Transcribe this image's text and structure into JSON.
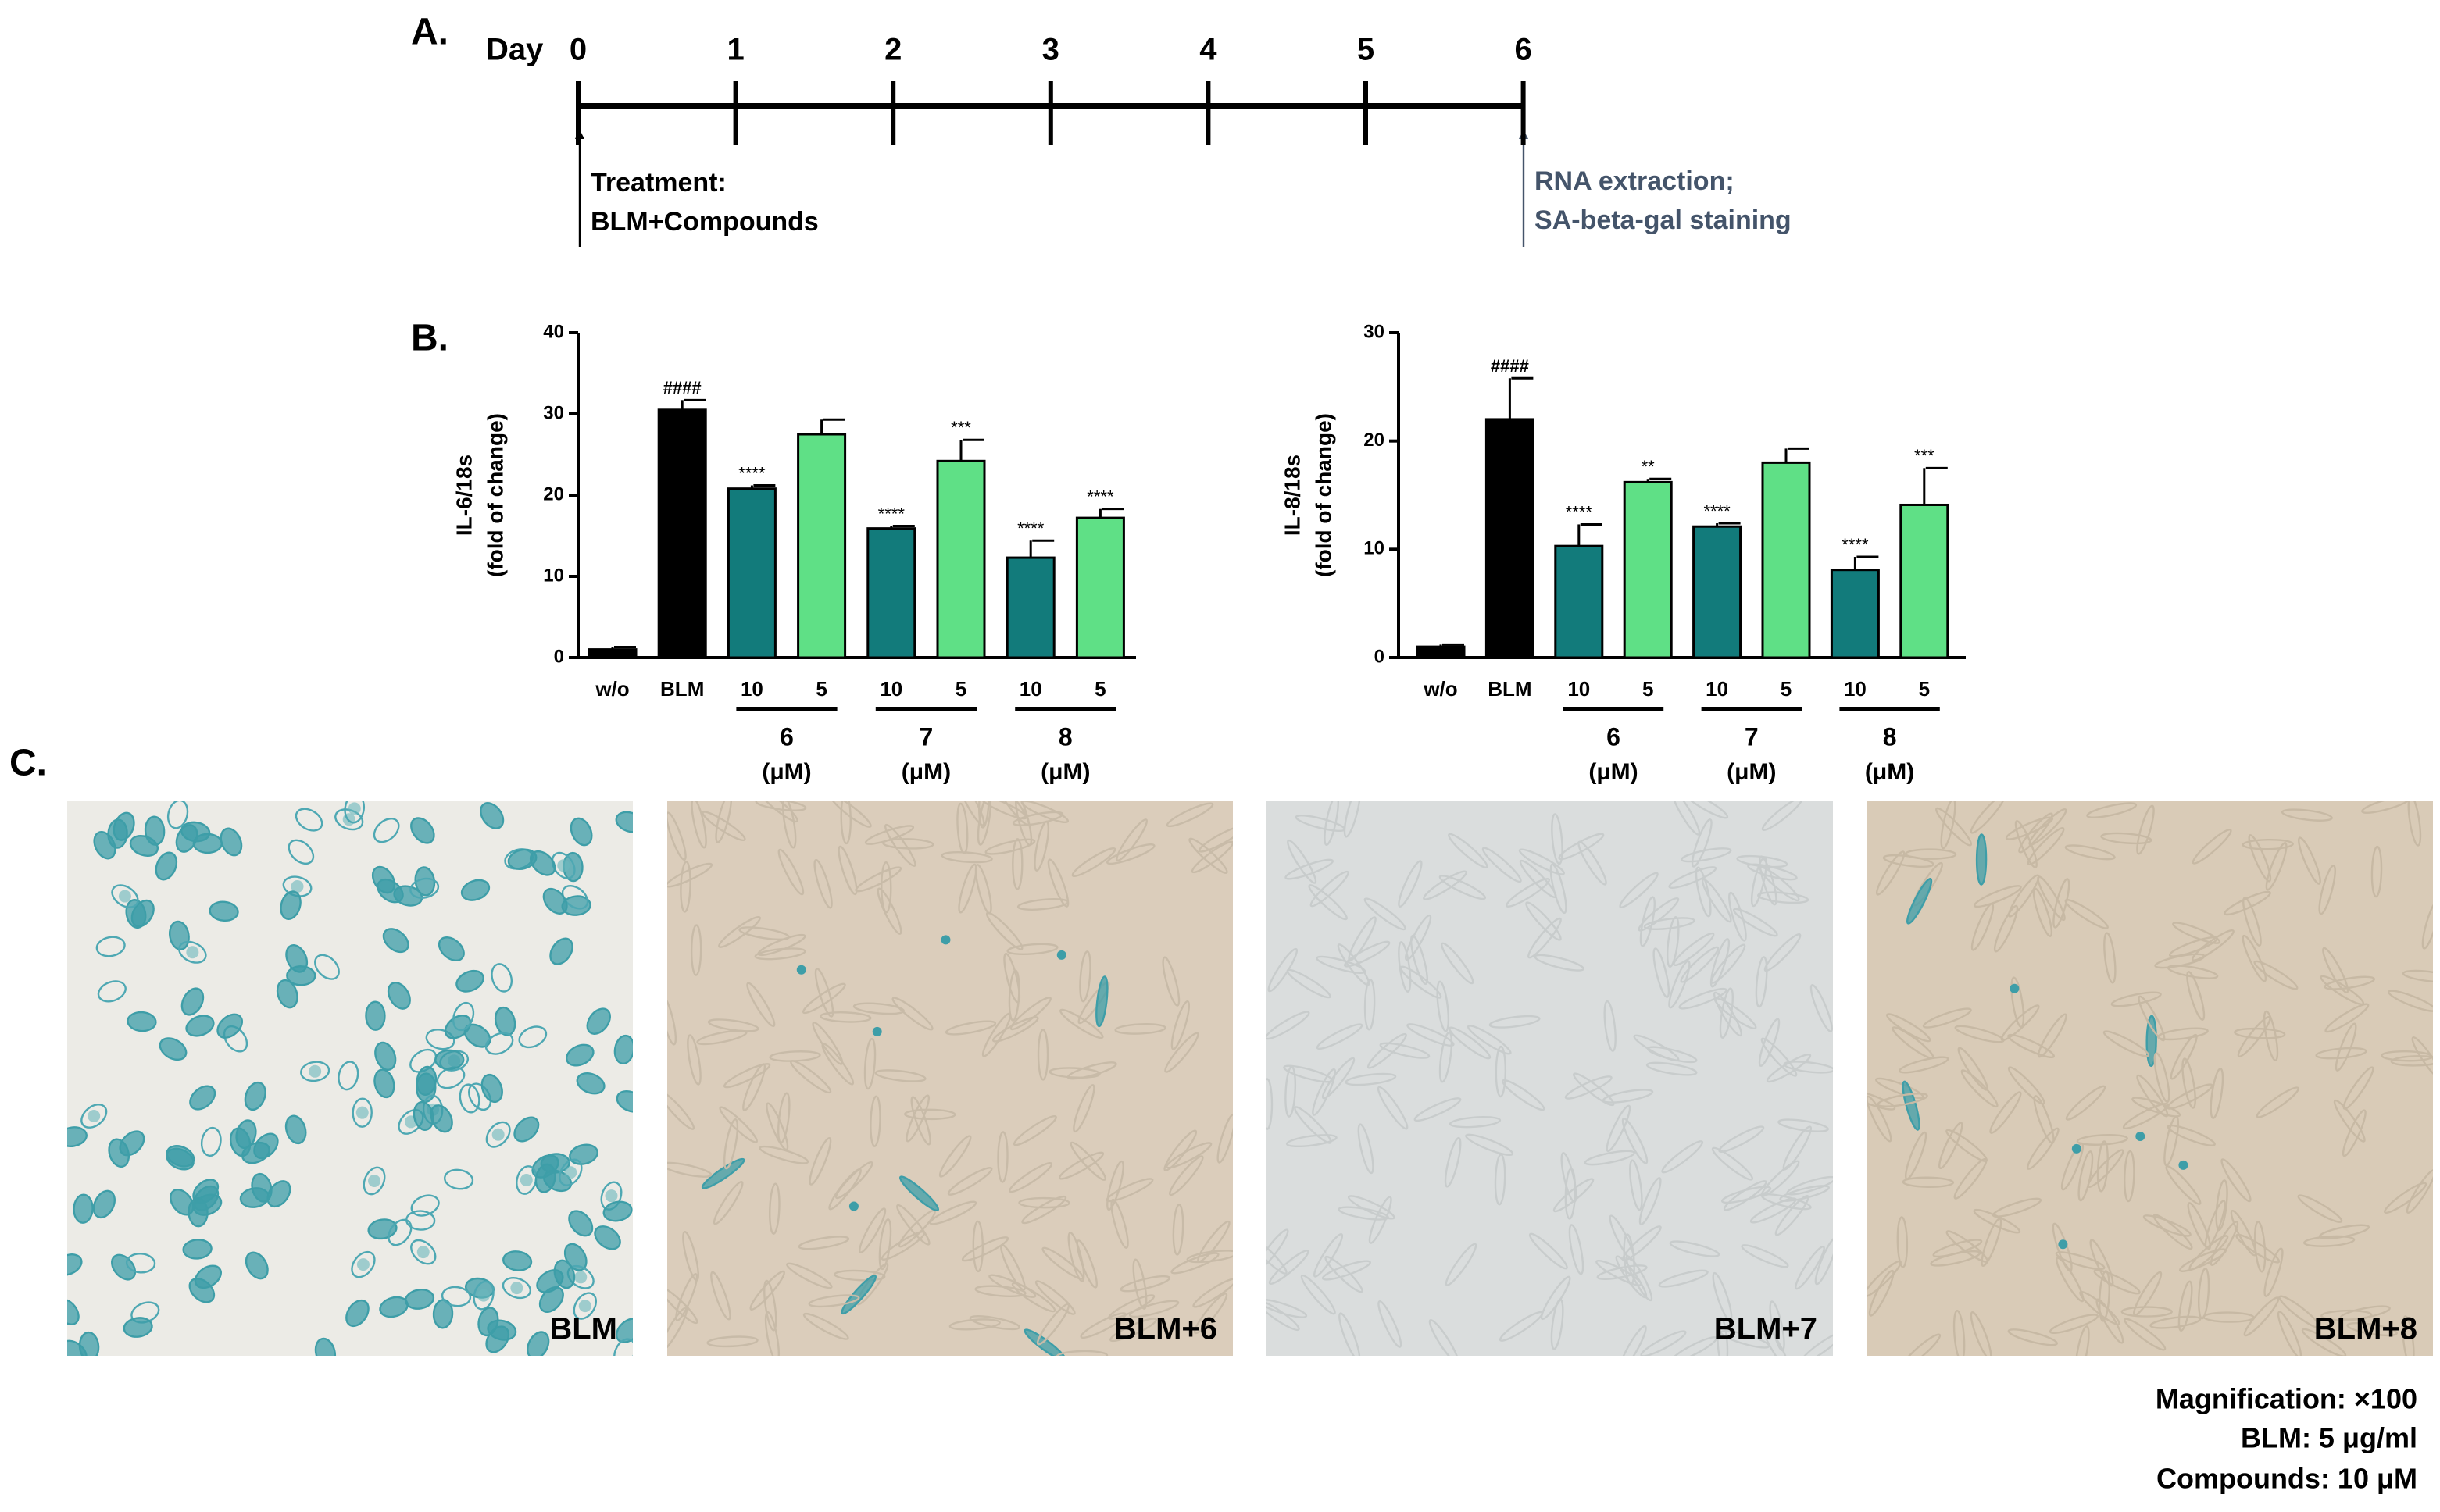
{
  "panel_a": {
    "label": "A.",
    "day_label": "Day",
    "days": [
      0,
      1,
      2,
      3,
      4,
      5,
      6
    ],
    "start_note": [
      "Treatment:",
      "BLM+Compounds"
    ],
    "end_note": [
      "RNA extraction;",
      "SA-beta-gal staining"
    ]
  },
  "panel_b_label": "B.",
  "chart_data": [
    {
      "type": "bar",
      "y_label": [
        "IL-6/18s",
        "(fold of change)"
      ],
      "categories": [
        "w/o",
        "BLM",
        "10",
        "5",
        "10",
        "5",
        "10",
        "5"
      ],
      "groups": [
        {
          "name": "6",
          "unit": "(μM)"
        },
        {
          "name": "7",
          "unit": "(μM)"
        },
        {
          "name": "8",
          "unit": "(μM)"
        }
      ],
      "values": [
        1,
        30.5,
        20.8,
        27.5,
        15.9,
        24.2,
        12.3,
        17.2
      ],
      "errors": [
        0.3,
        1.2,
        0.4,
        1.8,
        0.3,
        2.6,
        2.1,
        1.1
      ],
      "annotations": [
        null,
        "####",
        "****",
        null,
        "****",
        "***",
        "****",
        "****"
      ],
      "colors": [
        "#000000",
        "#000000",
        "#127b7b",
        "#5fe086",
        "#127b7b",
        "#5fe086",
        "#127b7b",
        "#5fe086"
      ],
      "ylim": [
        0,
        40
      ],
      "yticks": [
        0,
        10,
        20,
        30,
        40
      ]
    },
    {
      "type": "bar",
      "y_label": [
        "IL-8/18s",
        "(fold of change)"
      ],
      "categories": [
        "w/o",
        "BLM",
        "10",
        "5",
        "10",
        "5",
        "10",
        "5"
      ],
      "groups": [
        {
          "name": "6",
          "unit": "(μM)"
        },
        {
          "name": "7",
          "unit": "(μM)"
        },
        {
          "name": "8",
          "unit": "(μM)"
        }
      ],
      "values": [
        1,
        22,
        10.3,
        16.2,
        12.1,
        18,
        8.1,
        14.1
      ],
      "errors": [
        0.2,
        3.8,
        2,
        0.3,
        0.3,
        1.3,
        1.2,
        3.4
      ],
      "annotations": [
        null,
        "####",
        "****",
        "**",
        "****",
        null,
        "****",
        "***"
      ],
      "colors": [
        "#000000",
        "#000000",
        "#127b7b",
        "#5fe086",
        "#127b7b",
        "#5fe086",
        "#127b7b",
        "#5fe086"
      ],
      "ylim": [
        0,
        30
      ],
      "yticks": [
        0,
        10,
        20,
        30
      ]
    }
  ],
  "panel_c": {
    "label": "C.",
    "images": [
      {
        "label": "BLM"
      },
      {
        "label": "BLM+6"
      },
      {
        "label": "BLM+7"
      },
      {
        "label": "BLM+8"
      }
    ]
  },
  "notes": [
    "Magnification: ×100",
    "BLM: 5 μg/ml",
    "Compounds: 10 μM"
  ]
}
